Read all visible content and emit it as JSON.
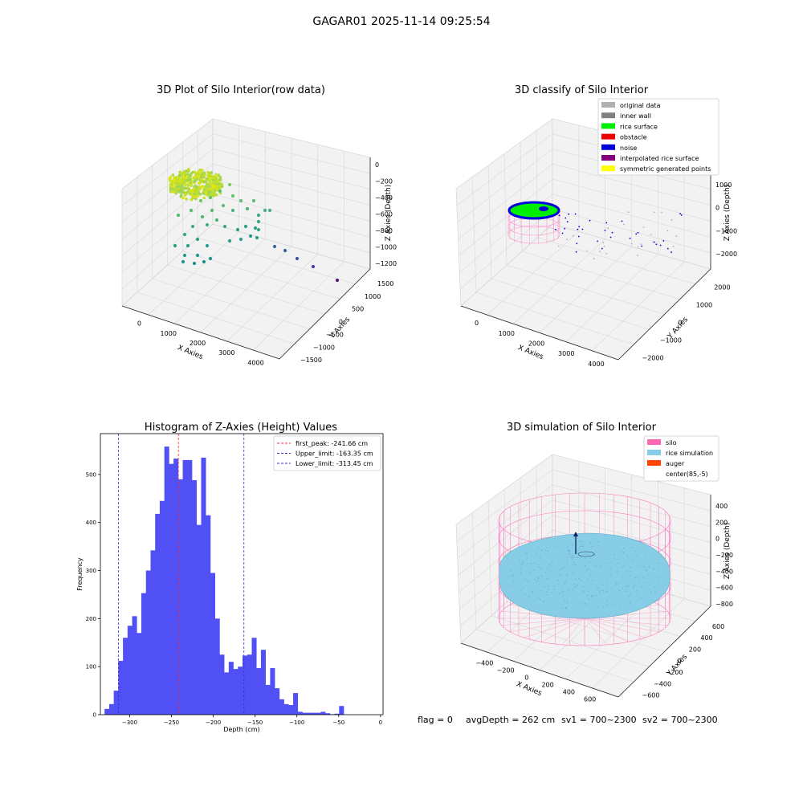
{
  "figure": {
    "suptitle": "GAGAR01 2025-11-14 09:25:54",
    "status": {
      "flag": "flag = 0",
      "avg_depth": "avgDepth = 262 cm",
      "sv1": "sv1 = 700~2300",
      "sv2": "sv2 = 700~2300"
    }
  },
  "colors": {
    "bar": "#5050f5",
    "peak_line": "#ff3030",
    "limit_line": "#3030d0",
    "pane": "#f2f2f2",
    "grid": "#d8d8d8",
    "silo": "#ff69b4",
    "rice": "#87cde6",
    "auger": "#ff4500",
    "original": "#b0b0b0",
    "inner_wall": "#808080",
    "rice_surface": "#00ee00",
    "obstacle": "#ee0000",
    "noise": "#0000dd",
    "interpolated": "#800080",
    "symmetric": "#ffff00"
  },
  "chart_data": [
    {
      "type": "scatter",
      "title": "3D Plot of Silo Interior(row data)",
      "xlabel": "X Axies",
      "ylabel": "Y Axies",
      "zlabel": "Z Axies (Depth)",
      "x_ticks": [
        "0",
        "1000",
        "2000",
        "3000",
        "4000"
      ],
      "y_ticks": [
        "1500",
        "1000",
        "500",
        "0",
        "−500",
        "−1000",
        "−1500"
      ],
      "z_ticks": [
        "0",
        "−200",
        "−400",
        "−600",
        "−800",
        "−1000",
        "−1200"
      ],
      "colormap": "viridis"
    },
    {
      "type": "scatter",
      "title": "3D classify of Silo Interior",
      "xlabel": "X Axies",
      "ylabel": "Y Axies",
      "zlabel": "Z Axies (Depth)",
      "x_ticks": [
        "0",
        "1000",
        "2000",
        "3000",
        "4000"
      ],
      "y_ticks": [
        "2000",
        "1000",
        "0",
        "−1000",
        "−2000"
      ],
      "z_ticks": [
        "1000",
        "0",
        "−1000",
        "−2000"
      ],
      "legend": [
        {
          "label": "original data",
          "color": "#b0b0b0"
        },
        {
          "label": "inner wall",
          "color": "#808080"
        },
        {
          "label": "rice surface",
          "color": "#00ee00"
        },
        {
          "label": "obstacle",
          "color": "#ee0000"
        },
        {
          "label": "noise",
          "color": "#0000dd"
        },
        {
          "label": "interpolated rice surface",
          "color": "#800080"
        },
        {
          "label": "symmetric generated points",
          "color": "#ffff00"
        }
      ],
      "legend_position": "top-right"
    },
    {
      "type": "bar",
      "title": "Histogram of Z-Axies (Height) Values",
      "xlabel": "Depth (cm)",
      "ylabel": "Frequency",
      "xlim": [
        -335,
        3
      ],
      "ylim": [
        0,
        585
      ],
      "x_ticks": [
        -300,
        -250,
        -200,
        -150,
        -100,
        -50,
        0
      ],
      "x_tick_labels": [
        "−300",
        "−250",
        "−200",
        "−150",
        "−100",
        "−50",
        "0"
      ],
      "y_ticks": [
        0,
        100,
        200,
        300,
        400,
        500
      ],
      "y_tick_labels": [
        "0",
        "100",
        "200",
        "300",
        "400",
        "500"
      ],
      "bin_start": -330,
      "bin_width": 5.5,
      "values": [
        12,
        22,
        50,
        112,
        160,
        185,
        205,
        170,
        253,
        300,
        342,
        418,
        445,
        558,
        522,
        533,
        490,
        530,
        530,
        488,
        395,
        535,
        415,
        295,
        200,
        125,
        88,
        110,
        95,
        100,
        123,
        125,
        160,
        97,
        135,
        62,
        97,
        55,
        32,
        22,
        20,
        45,
        6,
        4,
        4,
        4,
        4,
        6,
        3,
        1,
        2,
        18
      ],
      "lines": [
        {
          "name": "first_peak: -241.66 cm",
          "x": -241.66,
          "color": "#ff3030"
        },
        {
          "name": "Upper_limit: -163.35 cm",
          "x": -163.35,
          "color": "#3030d0"
        },
        {
          "name": "Lower_limit: -313.45 cm",
          "x": -313.45,
          "color": "#3030d0"
        }
      ],
      "legend_position": "top-right"
    },
    {
      "type": "other",
      "title": "3D simulation of Silo Interior",
      "xlabel": "X Axies",
      "ylabel": "Y Axies",
      "zlabel": "Z Axies (Depth)",
      "x_ticks": [
        "−400",
        "−200",
        "0",
        "200",
        "400",
        "600"
      ],
      "y_ticks": [
        "600",
        "400",
        "200",
        "0",
        "−200",
        "−400",
        "−600"
      ],
      "z_ticks": [
        "400",
        "200",
        "0",
        "−200",
        "−400",
        "−600",
        "−800"
      ],
      "legend": [
        {
          "label": "silo",
          "color": "#ff69b4"
        },
        {
          "label": "rice simulation",
          "color": "#87cde6"
        },
        {
          "label": "auger",
          "color": "#ff4500"
        },
        {
          "label": "center(85,-5)",
          "color": ""
        }
      ],
      "legend_position": "top-right"
    }
  ]
}
